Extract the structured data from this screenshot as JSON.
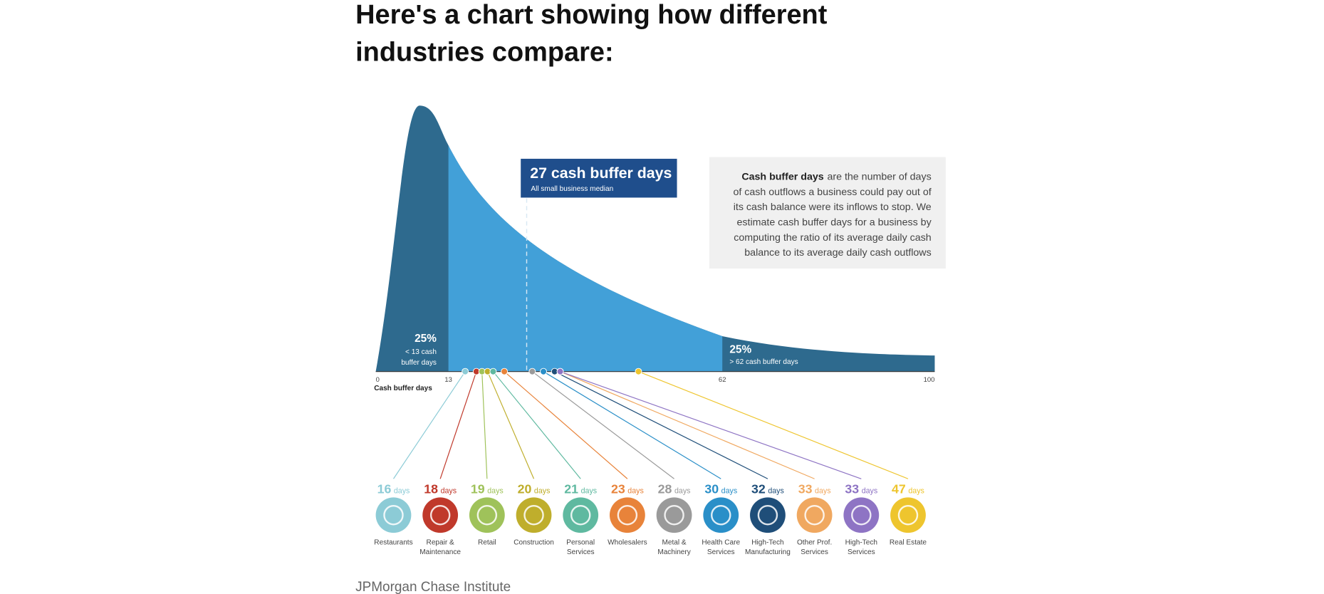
{
  "heading": [
    "Here's a chart showing how different",
    "industries compare:"
  ],
  "chart_data": {
    "type": "density",
    "xlabel": "Cash buffer days",
    "xlim": [
      0,
      100
    ],
    "xticks": [
      0,
      13,
      62,
      100
    ],
    "quartiles": [
      13,
      62
    ],
    "low_annotation": {
      "percent": "25%",
      "lines": [
        "< 13 cash",
        "buffer days"
      ]
    },
    "high_annotation": {
      "percent": "25%",
      "text": "> 62 cash buffer days"
    },
    "median": {
      "value": 27,
      "title": "27 cash buffer days",
      "subtitle": "All small business median"
    },
    "definition": {
      "term": "Cash buffer days",
      "lines": [
        "are the number of days",
        "of cash outflows a business could pay out of",
        "its cash balance were its inflows to stop. We",
        "estimate cash buffer days for a business by",
        "computing the ratio of its average daily cash",
        "balance to its average daily cash outflows"
      ]
    },
    "unit": "days",
    "categories": [
      "Restaurants",
      "Repair & Maintenance",
      "Retail",
      "Construction",
      "Personal Services",
      "Wholesalers",
      "Metal & Machinery",
      "Health Care Services",
      "High-Tech Manufacturing",
      "Other Prof. Services",
      "High-Tech Services",
      "Real Estate"
    ],
    "values": [
      16,
      18,
      19,
      20,
      21,
      23,
      28,
      30,
      32,
      33,
      33,
      47
    ],
    "colors": [
      "#8ccbd6",
      "#c0392b",
      "#9fc25a",
      "#bfae2c",
      "#5fb9a0",
      "#e8833a",
      "#9a9a9a",
      "#2a8fc8",
      "#1f4e79",
      "#f0a860",
      "#8e74c4",
      "#eec52e"
    ]
  },
  "source": "JPMorgan Chase Institute"
}
